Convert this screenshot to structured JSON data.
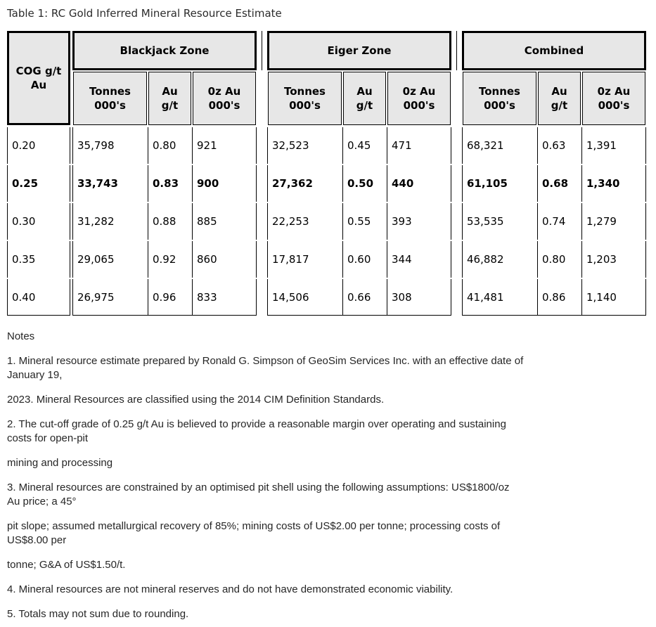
{
  "title": "Table 1: RC Gold Inferred Mineral Resource Estimate",
  "colors": {
    "header_background": "#e7e7e7",
    "border": "#000000",
    "text": "#262626"
  },
  "table": {
    "cog_header": "COG g/t\nAu",
    "column_headers": {
      "tonnes": "Tonnes\n000's",
      "grade": "Au\ng/t",
      "ounces": "0z Au\n000's"
    },
    "cog_values": [
      "0.20",
      "0.25",
      "0.30",
      "0.35",
      "0.40"
    ],
    "bold_row_index": 1,
    "zones": [
      {
        "name": "Blackjack Zone",
        "rows": [
          [
            "35,798",
            "0.80",
            "921"
          ],
          [
            "33,743",
            "0.83",
            "900"
          ],
          [
            "31,282",
            "0.88",
            "885"
          ],
          [
            "29,065",
            "0.92",
            "860"
          ],
          [
            "26,975",
            "0.96",
            "833"
          ]
        ]
      },
      {
        "name": "Eiger Zone",
        "rows": [
          [
            "32,523",
            "0.45",
            "471"
          ],
          [
            "27,362",
            "0.50",
            "440"
          ],
          [
            "22,253",
            "0.55",
            "393"
          ],
          [
            "17,817",
            "0.60",
            "344"
          ],
          [
            "14,506",
            "0.66",
            "308"
          ]
        ]
      },
      {
        "name": "Combined",
        "rows": [
          [
            "68,321",
            "0.63",
            "1,391"
          ],
          [
            "61,105",
            "0.68",
            "1,340"
          ],
          [
            "53,535",
            "0.74",
            "1,279"
          ],
          [
            "46,882",
            "0.80",
            "1,203"
          ],
          [
            "41,481",
            "0.86",
            "1,140"
          ]
        ]
      }
    ]
  },
  "notes": {
    "heading": "Notes",
    "paragraphs": [
      "1. Mineral resource estimate prepared by Ronald G. Simpson of GeoSim Services Inc. with an effective date of\nJanuary 19,",
      "2023. Mineral Resources are classified using the 2014 CIM Definition Standards.",
      "2. The cut-off grade of 0.25 g/t Au is believed to provide a reasonable margin over operating and sustaining\ncosts for open-pit",
      "mining and processing",
      "3. Mineral resources are constrained by an optimised pit shell using the following assumptions: US$1800/oz\nAu price; a 45°",
      "pit slope; assumed metallurgical recovery of 85%; mining costs of US$2.00 per tonne; processing costs of\nUS$8.00 per",
      "tonne; G&A of US$1.50/t.",
      "4. Mineral resources are not mineral reserves and do not have demonstrated economic viability.",
      "5. Totals may not sum due to rounding."
    ]
  }
}
